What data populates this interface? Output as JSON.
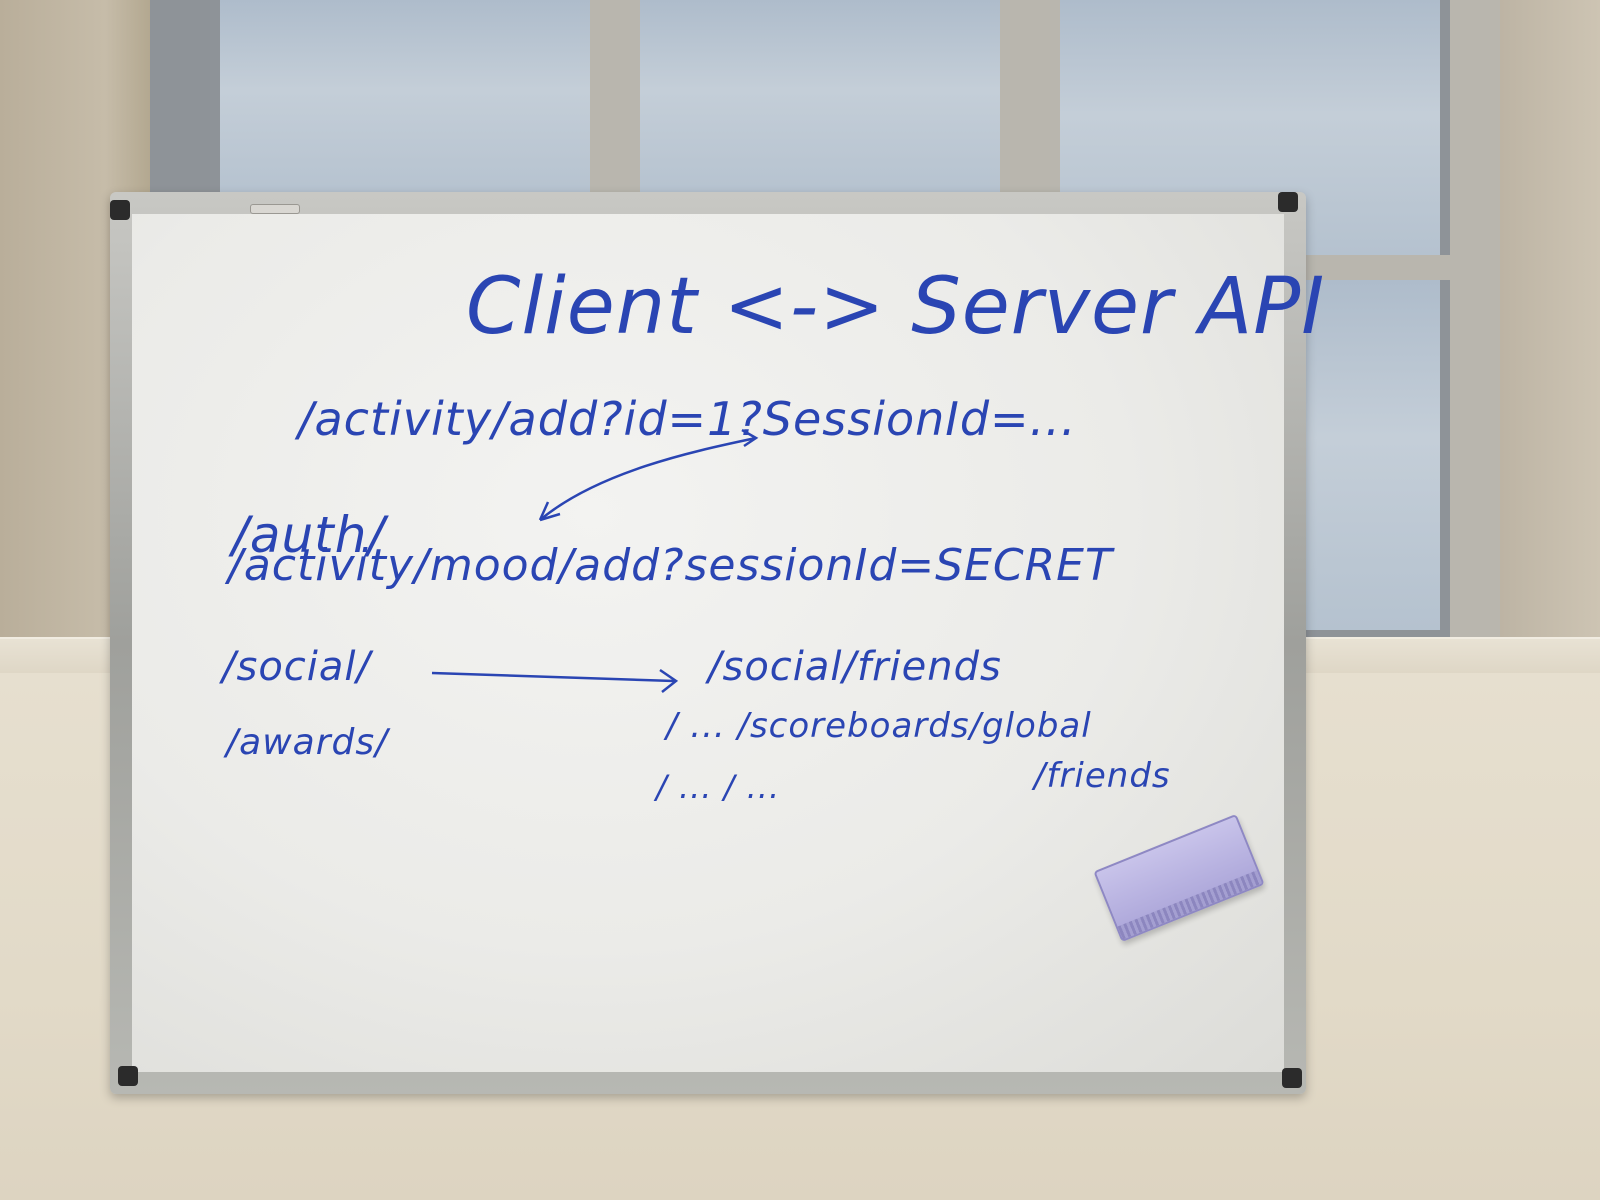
{
  "whiteboard": {
    "title": "Client <-> Server API",
    "lines": {
      "activity_add_full": "/activity/add?id=1?SessionId=...",
      "auth": "/auth/",
      "activity_mood_add": "/activity/mood/add?sessionId=SECRET",
      "social": "/social/",
      "social_friends": "/social/friends",
      "awards": "/awards/",
      "scoreboards_global": "/ ... /scoreboards/global",
      "friends_line": "/ ... / ...",
      "friends": "/friends"
    }
  },
  "colors": {
    "ink": "#2a45b3",
    "board": "#efefec",
    "eraser": "#b7b1e0"
  }
}
